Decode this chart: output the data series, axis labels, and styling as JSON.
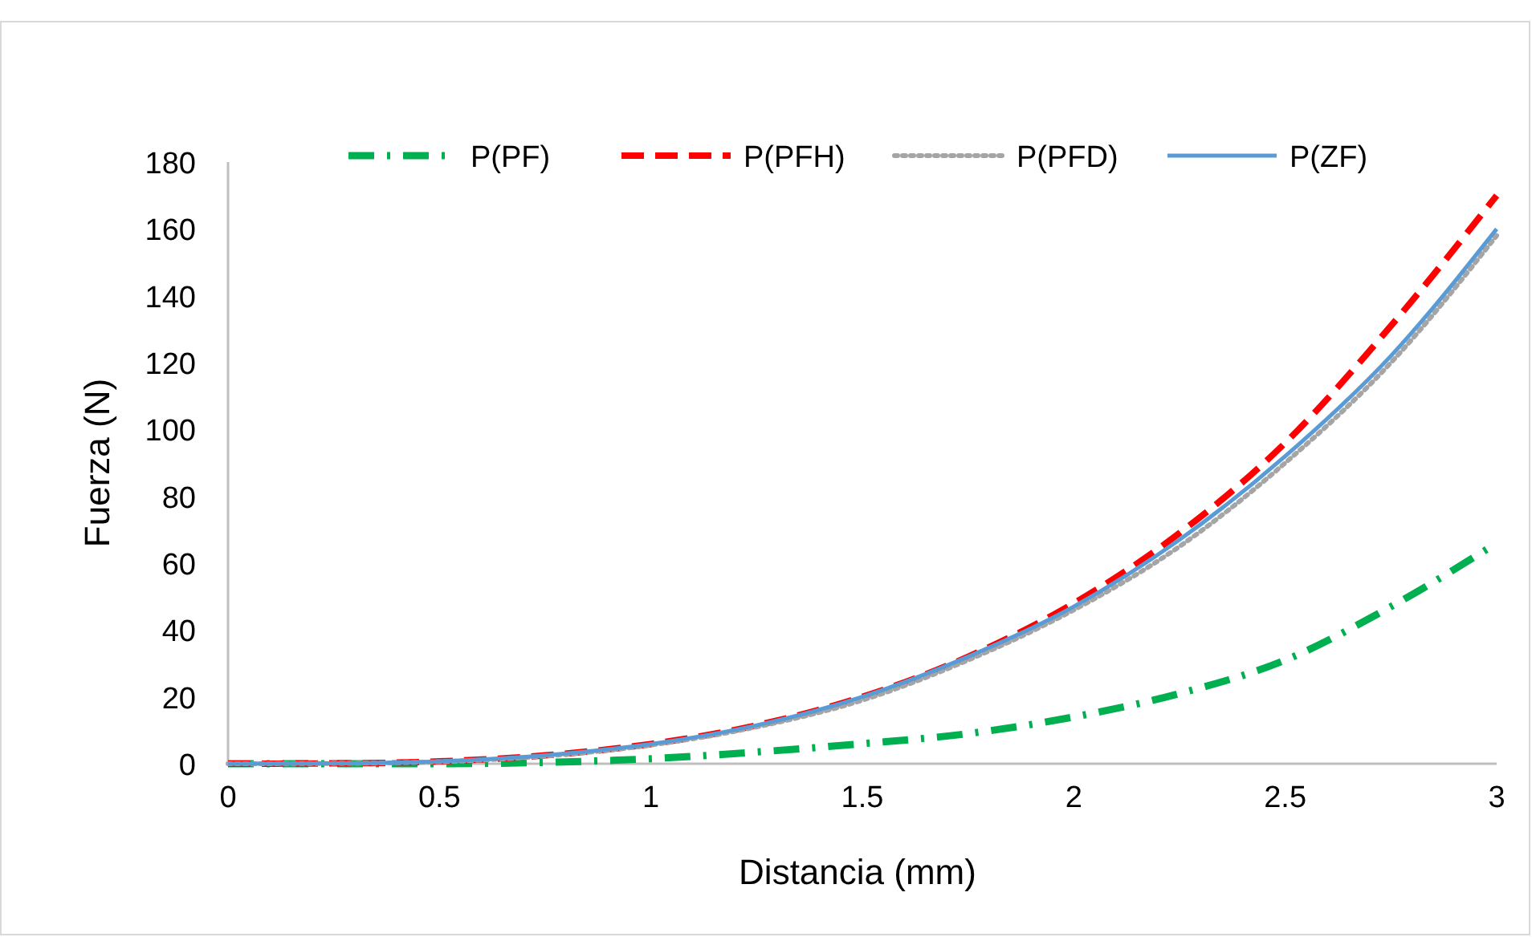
{
  "chart_data": {
    "type": "line",
    "xlabel": "Distancia (mm)",
    "ylabel": "Fuerza (N)",
    "x": [
      0,
      0.25,
      0.5,
      0.75,
      1,
      1.25,
      1.5,
      1.75,
      2,
      2.25,
      2.5,
      2.75,
      3
    ],
    "series": [
      {
        "name": "P(PF)",
        "color": "#00b050",
        "line_style": "dashdot",
        "values": [
          0,
          0,
          0,
          0.4,
          1.5,
          3.5,
          6,
          9,
          14,
          21,
          31,
          47,
          66
        ]
      },
      {
        "name": "P(PFH)",
        "color": "#ff0000",
        "line_style": "dashed",
        "values": [
          0,
          0.1,
          0.7,
          2.5,
          5.9,
          11.5,
          20,
          32,
          48,
          69,
          96,
          131,
          170
        ]
      },
      {
        "name": "P(PFD)",
        "color": "#a5a5a5",
        "line_style": "dotted",
        "values": [
          0,
          0.1,
          0.6,
          2.3,
          5.6,
          11,
          19,
          31,
          46,
          65,
          90,
          120,
          158
        ]
      },
      {
        "name": "P(ZF)",
        "color": "#5b9bd5",
        "line_style": "solid",
        "values": [
          0,
          0.1,
          0.7,
          2.5,
          5.9,
          11.5,
          20,
          32,
          47,
          67,
          92,
          122,
          160
        ]
      }
    ],
    "xlim": [
      0,
      3
    ],
    "xticks": [
      0,
      0.5,
      1,
      1.5,
      2,
      2.5,
      3
    ],
    "ylim": [
      0,
      180
    ],
    "yticks": [
      0,
      20,
      40,
      60,
      80,
      100,
      120,
      140,
      160,
      180
    ],
    "grid": false,
    "legend": "top",
    "marker": "none"
  }
}
